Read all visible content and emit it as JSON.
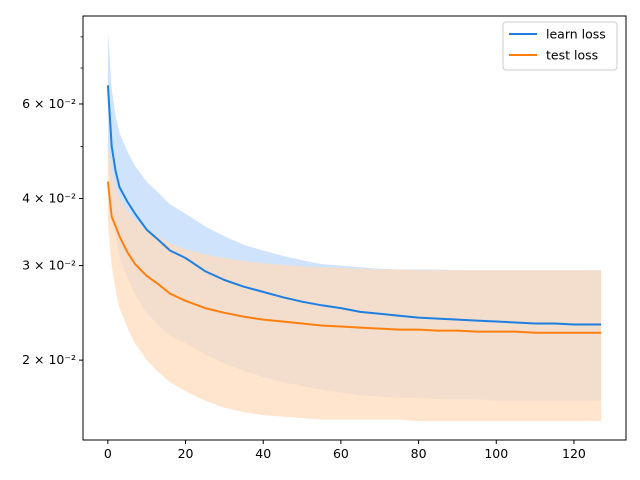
{
  "chart_data": {
    "type": "line",
    "title": "",
    "xlabel": "",
    "ylabel": "",
    "xlim": [
      -6.4,
      133.4
    ],
    "ylim": [
      0.0142,
      0.0875
    ],
    "yscale": "log",
    "grid": false,
    "legend_position": "top-right",
    "x_ticks": [
      0,
      20,
      40,
      60,
      80,
      100,
      120
    ],
    "x_tick_labels": [
      "0",
      "20",
      "40",
      "60",
      "80",
      "100",
      "120"
    ],
    "y_major_ticks": [
      0.02,
      0.03,
      0.04,
      0.06
    ],
    "y_tick_labels": [
      "2 × 10⁻²",
      "3 × 10⁻²",
      "4 × 10⁻²",
      "6 × 10⁻²"
    ],
    "y_minor_ticks": [
      0.05,
      0.07,
      0.08
    ],
    "series": [
      {
        "name": "learn loss",
        "color": "#1f7fe0",
        "band_color": "#cfe4fc",
        "x": [
          0,
          1,
          2,
          3,
          5,
          7,
          10,
          13,
          16,
          20,
          25,
          30,
          35,
          40,
          45,
          50,
          55,
          60,
          65,
          70,
          75,
          80,
          85,
          90,
          95,
          100,
          105,
          110,
          115,
          120,
          125,
          127
        ],
        "values": [
          0.065,
          0.05,
          0.045,
          0.042,
          0.0395,
          0.0375,
          0.035,
          0.0335,
          0.032,
          0.031,
          0.0293,
          0.0282,
          0.0274,
          0.0268,
          0.0262,
          0.0257,
          0.0253,
          0.025,
          0.0246,
          0.0244,
          0.0242,
          0.024,
          0.0239,
          0.0238,
          0.0237,
          0.0236,
          0.0235,
          0.0234,
          0.0234,
          0.0233,
          0.0233,
          0.0233
        ],
        "upper": [
          0.082,
          0.064,
          0.057,
          0.053,
          0.049,
          0.046,
          0.043,
          0.041,
          0.039,
          0.0375,
          0.0355,
          0.034,
          0.0328,
          0.032,
          0.0313,
          0.0307,
          0.0302,
          0.03,
          0.0298,
          0.0296,
          0.0295,
          0.0295,
          0.0295,
          0.0294,
          0.0294,
          0.0294,
          0.0294,
          0.0294,
          0.0294,
          0.0294,
          0.0294,
          0.0294
        ],
        "lower": [
          0.049,
          0.038,
          0.034,
          0.031,
          0.0285,
          0.0265,
          0.0245,
          0.0232,
          0.0222,
          0.0215,
          0.0205,
          0.0197,
          0.0191,
          0.0186,
          0.0182,
          0.0179,
          0.0176,
          0.0174,
          0.0172,
          0.0171,
          0.017,
          0.017,
          0.0169,
          0.0169,
          0.0169,
          0.0168,
          0.0168,
          0.0168,
          0.0168,
          0.0168,
          0.0168,
          0.0168
        ]
      },
      {
        "name": "test loss",
        "color": "#ff7f0e",
        "band_color": "#ffdcbe",
        "x": [
          0,
          1,
          2,
          3,
          5,
          7,
          10,
          13,
          16,
          20,
          25,
          30,
          35,
          40,
          45,
          50,
          55,
          60,
          65,
          70,
          75,
          80,
          85,
          90,
          95,
          100,
          105,
          110,
          115,
          120,
          125,
          127
        ],
        "values": [
          0.043,
          0.037,
          0.0355,
          0.034,
          0.0318,
          0.0302,
          0.0287,
          0.0277,
          0.0266,
          0.0258,
          0.025,
          0.0245,
          0.0241,
          0.0238,
          0.0236,
          0.0234,
          0.0232,
          0.0231,
          0.023,
          0.0229,
          0.0228,
          0.0228,
          0.0227,
          0.0227,
          0.0226,
          0.0226,
          0.0226,
          0.0225,
          0.0225,
          0.0225,
          0.0225,
          0.0225
        ],
        "upper": [
          0.05,
          0.045,
          0.042,
          0.04,
          0.038,
          0.0365,
          0.035,
          0.034,
          0.033,
          0.0322,
          0.0315,
          0.031,
          0.0306,
          0.0303,
          0.0301,
          0.0299,
          0.0298,
          0.0297,
          0.0296,
          0.0295,
          0.0295,
          0.0294,
          0.0294,
          0.0294,
          0.0294,
          0.0294,
          0.0294,
          0.0294,
          0.0294,
          0.0294,
          0.0294,
          0.0294
        ],
        "lower": [
          0.036,
          0.03,
          0.027,
          0.025,
          0.023,
          0.0215,
          0.02,
          0.019,
          0.0182,
          0.0175,
          0.0168,
          0.0163,
          0.016,
          0.0158,
          0.0157,
          0.0156,
          0.0155,
          0.0155,
          0.0155,
          0.0155,
          0.0155,
          0.0154,
          0.0154,
          0.0154,
          0.0154,
          0.0154,
          0.0154,
          0.0154,
          0.0154,
          0.0154,
          0.0154,
          0.0154
        ]
      }
    ]
  }
}
